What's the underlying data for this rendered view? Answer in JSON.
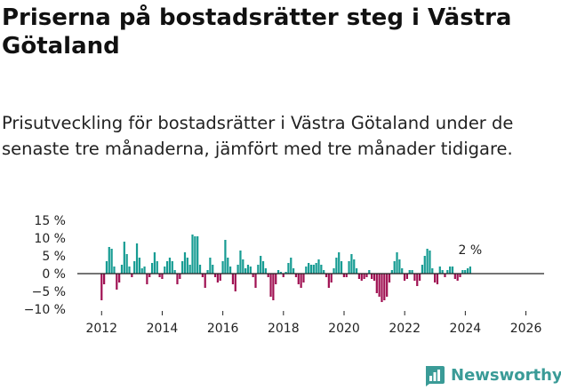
{
  "header": {
    "title": "Priserna på bostadsrätter steg i Västra Götaland",
    "subtitle": "Prisutveckling för bostadsrätter i Västra Götaland under de senaste tre månaderna, jämfört med tre månader tidigare."
  },
  "brand": {
    "name": "Newsworthy",
    "icon": "newsworthy-logo-icon"
  },
  "colors": {
    "positive": "#179c93",
    "negative": "#a01253",
    "zero_line": "#222222"
  },
  "chart_data": {
    "type": "bar",
    "title": "Priserna på bostadsrätter steg i Västra Götaland",
    "xlabel": "",
    "ylabel": "",
    "x_start": 2012,
    "x_step": 0.0833,
    "xlim": [
      2011.2,
      2026.6
    ],
    "ylim": [
      -10,
      15
    ],
    "yticks": [
      15,
      10,
      5,
      0,
      -5,
      -10
    ],
    "ytick_labels": [
      "15 %",
      "10 %",
      "5 %",
      "0 %",
      "−5 %",
      "−10 %"
    ],
    "xticks": [
      2012,
      2014,
      2016,
      2018,
      2020,
      2022,
      2024,
      2026
    ],
    "xtick_labels": [
      "2012",
      "2014",
      "2016",
      "2018",
      "2020",
      "2022",
      "2024",
      "2026"
    ],
    "annotation": {
      "label": "2 %",
      "value": 2
    },
    "values": [
      -7.5,
      -3,
      3.5,
      7.5,
      7,
      2,
      -4.5,
      -2.5,
      2.5,
      9,
      5.5,
      2,
      -1,
      3.5,
      8.5,
      4.5,
      1.5,
      2,
      -3,
      -1,
      3,
      6,
      3.5,
      -1,
      -1.5,
      2,
      3.5,
      4.5,
      3.5,
      1,
      -3,
      -1.5,
      3.5,
      6,
      4.5,
      2.5,
      11,
      10.5,
      10.5,
      2.5,
      -1,
      -4,
      1,
      4.5,
      2.5,
      -1,
      -2.5,
      -2,
      3.5,
      9.5,
      4.5,
      2,
      -3,
      -5,
      2.5,
      6.5,
      4,
      1.5,
      2.5,
      2,
      -1,
      -4,
      2.5,
      5,
      3.5,
      1.5,
      -1,
      -6.5,
      -7.5,
      -3,
      1,
      0.5,
      -1,
      0.5,
      3,
      4.5,
      1.5,
      -1,
      -3,
      -4,
      -2.5,
      2,
      3,
      2.5,
      2.5,
      3,
      4,
      2.5,
      1,
      -1,
      -4,
      -2.5,
      1.5,
      4.5,
      6,
      3.5,
      -1,
      -1,
      3.5,
      5.5,
      4,
      1.5,
      -1.5,
      -2,
      -1.5,
      -1,
      1,
      -1.5,
      -2,
      -5.5,
      -6.5,
      -8,
      -7.5,
      -6.5,
      -2.5,
      1,
      3.5,
      6,
      4,
      1.5,
      -2,
      -1.5,
      1,
      1,
      -2,
      -3.5,
      -2,
      2.5,
      5,
      7,
      6.5,
      1.5,
      -2.5,
      -3,
      2,
      1,
      -1,
      1,
      2,
      2,
      -1.5,
      -2,
      -1,
      1,
      1,
      1.5,
      2
    ]
  }
}
